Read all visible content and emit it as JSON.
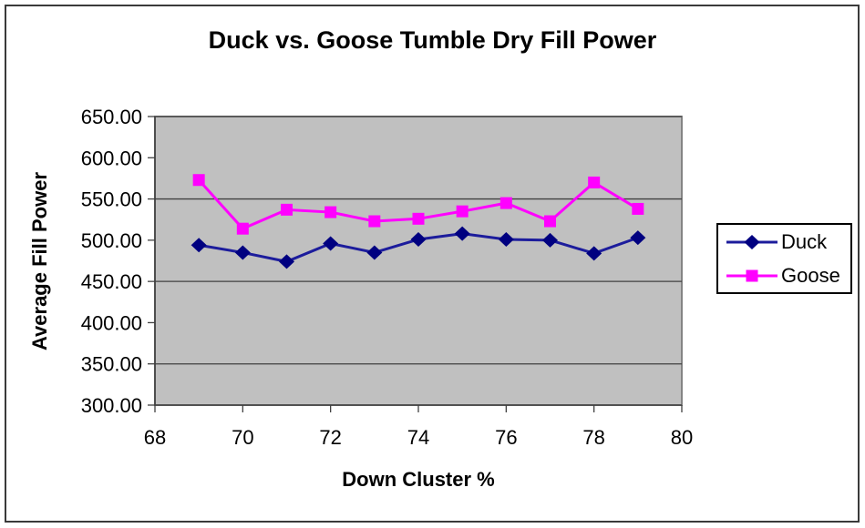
{
  "chart_data": {
    "type": "line",
    "title": "Duck vs. Goose Tumble Dry Fill Power",
    "xlabel": "Down Cluster %",
    "ylabel": "Average Fill Power",
    "x": [
      69,
      70,
      71,
      72,
      73,
      74,
      75,
      76,
      77,
      78,
      79
    ],
    "series": [
      {
        "name": "Duck",
        "marker": "diamond",
        "marker_color": "#000080",
        "line_color": "#1c1c9c",
        "values": [
          494,
          485,
          474,
          496,
          485,
          501,
          508,
          501,
          500,
          484,
          503
        ]
      },
      {
        "name": "Goose",
        "marker": "square",
        "marker_color": "#ff00ff",
        "line_color": "#ff00ff",
        "values": [
          573,
          514,
          537,
          534,
          523,
          526,
          535,
          545,
          523,
          570,
          538
        ]
      }
    ],
    "xlim": [
      68,
      80
    ],
    "ylim": [
      300,
      650
    ],
    "x_ticks": [
      68,
      70,
      72,
      74,
      76,
      78,
      80
    ],
    "x_tick_labels": [
      "68",
      "70",
      "72",
      "74",
      "76",
      "78",
      "80"
    ],
    "y_ticks": [
      300,
      350,
      400,
      450,
      500,
      550,
      600,
      650
    ],
    "y_tick_labels": [
      "300.00",
      "350.00",
      "400.00",
      "450.00",
      "500.00",
      "550.00",
      "600.00",
      "650.00"
    ],
    "gridlines": [
      350,
      450,
      550,
      650
    ],
    "grid": true,
    "legend_position": "right",
    "legend_labels": [
      "Duck",
      "Goose"
    ],
    "colors": {
      "plot_background": "#c0c0c0",
      "plot_border": "#848484",
      "grid_color": "#404040",
      "axis_color": "#404040",
      "text_color": "#000000"
    }
  }
}
